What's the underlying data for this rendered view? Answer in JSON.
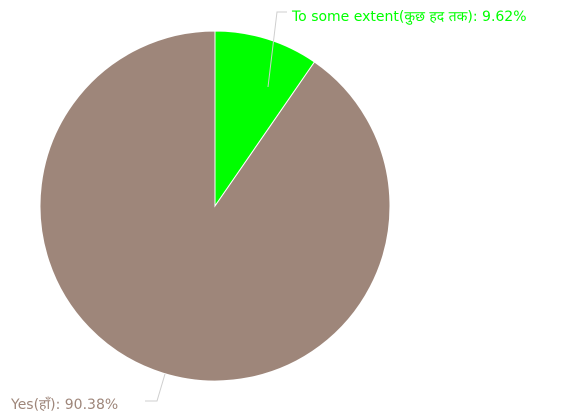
{
  "chart_data": {
    "type": "pie",
    "slices": [
      {
        "label": "To some extent(कुछ हद तक)",
        "value": 9.62,
        "value_text": "9.62%",
        "color": "#00ff00"
      },
      {
        "label": "Yes(हाँ)",
        "value": 90.38,
        "value_text": "90.38%",
        "color": "#9e867a"
      }
    ],
    "start_angle": "12 o'clock",
    "direction": "clockwise",
    "legend": "none",
    "label_style": "outside with leader lines"
  }
}
